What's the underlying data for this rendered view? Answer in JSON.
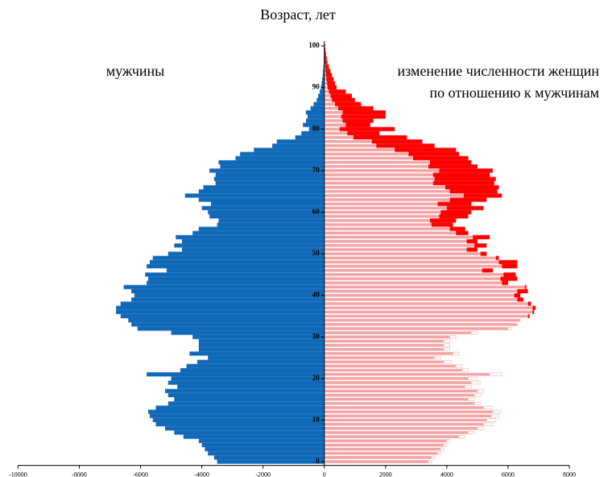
{
  "chart_data": {
    "type": "pyramid",
    "title": "Возраст, лет",
    "annotations": [
      "мужчины",
      "изменение численности женщин",
      "по отношению к мужчинам"
    ],
    "ages": [
      0,
      1,
      2,
      3,
      4,
      5,
      6,
      7,
      8,
      9,
      10,
      11,
      12,
      13,
      14,
      15,
      16,
      17,
      18,
      19,
      20,
      21,
      22,
      23,
      24,
      25,
      26,
      27,
      28,
      29,
      30,
      31,
      32,
      33,
      34,
      35,
      36,
      37,
      38,
      39,
      40,
      41,
      42,
      43,
      44,
      45,
      46,
      47,
      48,
      49,
      50,
      51,
      52,
      53,
      54,
      55,
      56,
      57,
      58,
      59,
      60,
      61,
      62,
      63,
      64,
      65,
      66,
      67,
      68,
      69,
      70,
      71,
      72,
      73,
      74,
      75,
      76,
      77,
      78,
      79,
      80,
      81,
      82,
      83,
      84,
      85,
      86,
      87,
      88,
      89,
      90,
      91,
      92,
      93,
      94,
      95,
      96,
      97,
      98,
      99,
      100
    ],
    "series": [
      {
        "color": "#1069b8",
        "values": [
          -3500,
          -3600,
          -3800,
          -3900,
          -4000,
          -4100,
          -4600,
          -4900,
          -5200,
          -5500,
          -5600,
          -5700,
          -5750,
          -5500,
          -5100,
          -4900,
          -5100,
          -5200,
          -4800,
          -5100,
          -5000,
          -5800,
          -4700,
          -4500,
          -4150,
          -3800,
          -4400,
          -4100,
          -4100,
          -4100,
          -4300,
          -5000,
          -6100,
          -6300,
          -6400,
          -6650,
          -6800,
          -6800,
          -6650,
          -6300,
          -6200,
          -6300,
          -6550,
          -5800,
          -5750,
          -5850,
          -5150,
          -5800,
          -5700,
          -5600,
          -5100,
          -4650,
          -4900,
          -4650,
          -4850,
          -4300,
          -4100,
          -3500,
          -3450,
          -3750,
          -3800,
          -4000,
          -3700,
          -4100,
          -4550,
          -4100,
          -3950,
          -3550,
          -3600,
          -3550,
          -3750,
          -3400,
          -3450,
          -2900,
          -2750,
          -2300,
          -1700,
          -1550,
          -950,
          -750,
          -500,
          -700,
          -600,
          -550,
          -600,
          -450,
          -350,
          -250,
          -200,
          -150,
          -110,
          -90,
          -70,
          -50,
          -40,
          -30,
          -20,
          -15,
          -10,
          -5,
          -3
        ]
      },
      {
        "color": "#f4a3a3",
        "excess_color": "#ff0000",
        "values": [
          3400,
          3500,
          3700,
          3800,
          3900,
          4000,
          4400,
          4700,
          5000,
          5200,
          5300,
          5450,
          5500,
          5200,
          4900,
          4700,
          4900,
          5000,
          4600,
          4800,
          4700,
          5400,
          4500,
          4300,
          3900,
          3600,
          4200,
          3900,
          3900,
          3900,
          4100,
          4800,
          6000,
          6300,
          6400,
          6700,
          6850,
          6900,
          6750,
          6500,
          6400,
          6650,
          6600,
          6000,
          6300,
          6250,
          5500,
          6300,
          6300,
          5700,
          5300,
          5000,
          5300,
          5000,
          5400,
          4700,
          4600,
          4200,
          4300,
          4700,
          4800,
          5200,
          4800,
          5300,
          5800,
          5650,
          5700,
          5550,
          5600,
          5400,
          5500,
          5000,
          4800,
          4700,
          4400,
          4300,
          3600,
          3200,
          2700,
          1800,
          2300,
          1500,
          1600,
          2000,
          2000,
          1600,
          1200,
          1000,
          900,
          700,
          400,
          350,
          300,
          250,
          200,
          150,
          100,
          80,
          60,
          40,
          25
        ]
      }
    ],
    "xlim": [
      -10000,
      8000
    ],
    "xticks": [
      -10000,
      -8000,
      -6000,
      -4000,
      -2000,
      0,
      2000,
      4000,
      6000,
      8000
    ],
    "ylim": [
      0,
      100
    ],
    "yticks": [
      0,
      10,
      20,
      30,
      40,
      50,
      60,
      70,
      80,
      90,
      100
    ]
  }
}
